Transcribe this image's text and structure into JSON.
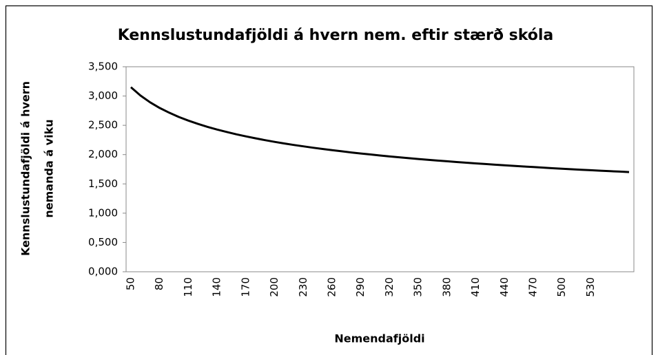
{
  "chart_data": {
    "type": "line",
    "title": "Kennslustundafjöldi á hvern nem. eftir stærð skóla",
    "xlabel": "Nemendafjöldi",
    "ylabel": [
      "Kennslustundafjöldi á hvern",
      "nemanda á viku"
    ],
    "categories": [
      "50",
      null,
      null,
      "80",
      null,
      null,
      "110",
      null,
      null,
      "140",
      null,
      null,
      "170",
      null,
      null,
      "200",
      null,
      null,
      "230",
      null,
      null,
      "260",
      null,
      null,
      "290",
      null,
      null,
      "320",
      null,
      null,
      "350",
      null,
      null,
      "380",
      null,
      null,
      "410",
      null,
      null,
      "440",
      null,
      null,
      "470",
      null,
      null,
      "500",
      null,
      null,
      "530",
      null,
      null,
      null,
      null
    ],
    "series": [
      {
        "name": "Kennslustundafjöldi",
        "color": "#000000",
        "values": [
          3150,
          3008,
          2893,
          2797,
          2715,
          2643,
          2580,
          2524,
          2474,
          2428,
          2386,
          2347,
          2311,
          2278,
          2247,
          2218,
          2191,
          2165,
          2141,
          2118,
          2096,
          2076,
          2056,
          2037,
          2019,
          2002,
          1985,
          1969,
          1954,
          1939,
          1925,
          1912,
          1898,
          1886,
          1873,
          1861,
          1850,
          1839,
          1828,
          1817,
          1807,
          1797,
          1787,
          1778,
          1768,
          1759,
          1750,
          1742,
          1733,
          1725,
          1717,
          1710,
          1702
        ]
      }
    ],
    "ylim": [
      0,
      3500
    ],
    "yticks": [
      {
        "value": 0,
        "label": "0,000"
      },
      {
        "value": 500,
        "label": "0,500"
      },
      {
        "value": 1000,
        "label": "1,000"
      },
      {
        "value": 1500,
        "label": "1,500"
      },
      {
        "value": 2000,
        "label": "2,000"
      },
      {
        "value": 2500,
        "label": "2,500"
      },
      {
        "value": 3000,
        "label": "3,000"
      },
      {
        "value": 3500,
        "label": "3,500"
      }
    ],
    "grid": false,
    "legend": false
  }
}
